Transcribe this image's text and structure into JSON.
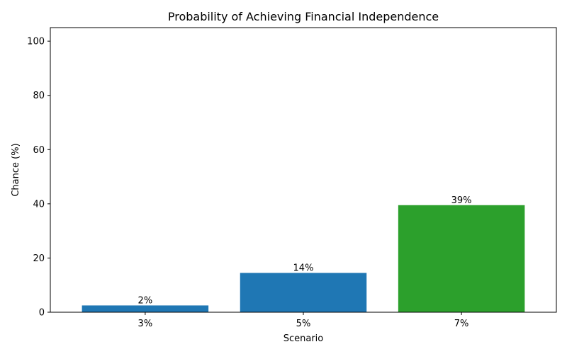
{
  "chart_data": {
    "type": "bar",
    "title": "Probability of Achieving Financial Independence",
    "xlabel": "Scenario",
    "ylabel": "Chance (%)",
    "categories": [
      "3%",
      "5%",
      "7%"
    ],
    "values": [
      2.5,
      14.5,
      39.5
    ],
    "data_labels": [
      "2%",
      "14%",
      "39%"
    ],
    "bar_colors": [
      "#1f77b4",
      "#1f77b4",
      "#2ca02c"
    ],
    "ylim": [
      0,
      105
    ],
    "yticks": [
      0,
      20,
      40,
      60,
      80,
      100
    ],
    "grid": false,
    "legend": "none"
  }
}
